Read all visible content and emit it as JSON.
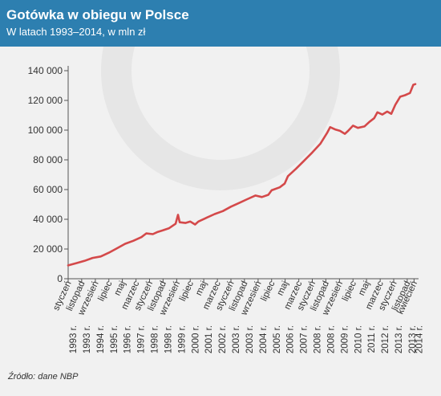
{
  "header": {
    "title": "Gotówka w obiegu w Polsce",
    "subtitle": "W latach 1993–2014, w mln zł",
    "bg_color": "#2d7fb0"
  },
  "source": "Źródło: dane NBP",
  "chart_data": {
    "type": "line",
    "title": "Gotówka w obiegu w Polsce",
    "subtitle": "W latach 1993–2014, w mln zł",
    "xlabel": "",
    "ylabel": "",
    "ylim": [
      0,
      140000
    ],
    "yticks": [
      0,
      20000,
      40000,
      60000,
      80000,
      100000,
      120000,
      140000
    ],
    "ytick_labels": [
      "0",
      "20 000",
      "40 000",
      "60 000",
      "80 000",
      "100 000",
      "120 000",
      "140 000"
    ],
    "grid": false,
    "line_color": "#d4494a",
    "xrange": [
      1993.0,
      2014.33
    ],
    "xtick_labels": [
      {
        "month": "styczeń",
        "year": "1993 r.",
        "t": 1993.0
      },
      {
        "month": "listopad",
        "year": "1993 r.",
        "t": 1993.83
      },
      {
        "month": "wrzesień",
        "year": "1994 r.",
        "t": 1994.67
      },
      {
        "month": "lipiec",
        "year": "1995 r.",
        "t": 1995.5
      },
      {
        "month": "maj",
        "year": "1996 r.",
        "t": 1996.33
      },
      {
        "month": "marzec",
        "year": "1997 r.",
        "t": 1997.17
      },
      {
        "month": "styczeń",
        "year": "1998 r.",
        "t": 1998.0
      },
      {
        "month": "listopad",
        "year": "1998 r.",
        "t": 1998.83
      },
      {
        "month": "wrzesień",
        "year": "1999 r.",
        "t": 1999.67
      },
      {
        "month": "lipiec",
        "year": "2000 r.",
        "t": 2000.5
      },
      {
        "month": "maj",
        "year": "2001 r.",
        "t": 2001.33
      },
      {
        "month": "marzec",
        "year": "2002 r.",
        "t": 2002.17
      },
      {
        "month": "styczeń",
        "year": "2003 r.",
        "t": 2003.0
      },
      {
        "month": "listopad",
        "year": "2003 r.",
        "t": 2003.83
      },
      {
        "month": "wrzesień",
        "year": "2004 r.",
        "t": 2004.67
      },
      {
        "month": "lipiec",
        "year": "2005 r.",
        "t": 2005.5
      },
      {
        "month": "maj",
        "year": "2006 r.",
        "t": 2006.33
      },
      {
        "month": "marzec",
        "year": "2007 r.",
        "t": 2007.17
      },
      {
        "month": "styczeń",
        "year": "2008 r.",
        "t": 2008.0
      },
      {
        "month": "listopad",
        "year": "2008 r.",
        "t": 2008.83
      },
      {
        "month": "wrzesień",
        "year": "2009 r.",
        "t": 2009.67
      },
      {
        "month": "lipiec",
        "year": "2010 r.",
        "t": 2010.5
      },
      {
        "month": "maj",
        "year": "2011 r.",
        "t": 2011.33
      },
      {
        "month": "marzec",
        "year": "2012 r.",
        "t": 2012.17
      },
      {
        "month": "styczeń",
        "year": "2013 r.",
        "t": 2013.0
      },
      {
        "month": "listopad",
        "year": "2013 r.",
        "t": 2013.83
      },
      {
        "month": "kwiecień",
        "year": "2014 r.",
        "t": 2014.25
      }
    ],
    "series": [
      {
        "points": [
          [
            1993.0,
            9000
          ],
          [
            1993.5,
            10500
          ],
          [
            1994.0,
            12000
          ],
          [
            1994.5,
            14000
          ],
          [
            1995.0,
            15000
          ],
          [
            1995.5,
            17500
          ],
          [
            1996.0,
            20500
          ],
          [
            1996.5,
            23500
          ],
          [
            1997.0,
            25500
          ],
          [
            1997.5,
            28000
          ],
          [
            1997.8,
            30500
          ],
          [
            1998.2,
            30000
          ],
          [
            1998.5,
            31500
          ],
          [
            1998.8,
            32500
          ],
          [
            1999.2,
            34000
          ],
          [
            1999.6,
            37000
          ],
          [
            1999.75,
            43000
          ],
          [
            1999.85,
            38000
          ],
          [
            2000.2,
            37500
          ],
          [
            2000.5,
            38500
          ],
          [
            2000.8,
            36500
          ],
          [
            2001.0,
            38500
          ],
          [
            2001.5,
            41000
          ],
          [
            2002.0,
            43500
          ],
          [
            2002.5,
            45500
          ],
          [
            2003.0,
            48500
          ],
          [
            2003.5,
            51000
          ],
          [
            2004.0,
            53500
          ],
          [
            2004.5,
            56000
          ],
          [
            2004.9,
            55000
          ],
          [
            2005.3,
            56500
          ],
          [
            2005.5,
            59500
          ],
          [
            2006.0,
            61500
          ],
          [
            2006.3,
            64000
          ],
          [
            2006.5,
            69000
          ],
          [
            2007.0,
            74000
          ],
          [
            2007.5,
            79500
          ],
          [
            2008.0,
            85000
          ],
          [
            2008.5,
            91000
          ],
          [
            2008.9,
            98000
          ],
          [
            2009.1,
            102000
          ],
          [
            2009.4,
            100500
          ],
          [
            2009.7,
            99500
          ],
          [
            2010.0,
            97500
          ],
          [
            2010.2,
            99500
          ],
          [
            2010.5,
            103000
          ],
          [
            2010.8,
            101500
          ],
          [
            2011.2,
            102500
          ],
          [
            2011.5,
            105500
          ],
          [
            2011.8,
            108000
          ],
          [
            2012.0,
            112000
          ],
          [
            2012.3,
            110500
          ],
          [
            2012.6,
            112500
          ],
          [
            2012.85,
            111000
          ],
          [
            2013.1,
            117000
          ],
          [
            2013.4,
            122500
          ],
          [
            2013.7,
            123500
          ],
          [
            2014.0,
            125000
          ],
          [
            2014.2,
            130500
          ],
          [
            2014.33,
            131000
          ]
        ]
      }
    ]
  }
}
